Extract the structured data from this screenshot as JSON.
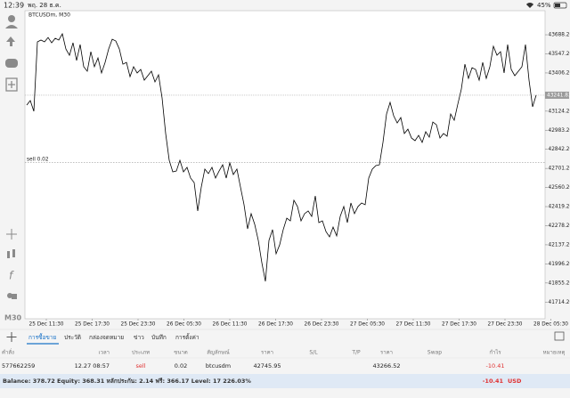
{
  "status_bar": {
    "time": "12:39",
    "date": "พฤ. 28 ธ.ค.",
    "battery": "45%"
  },
  "toolbar": {
    "timeframe": "M30"
  },
  "chart_data": {
    "type": "line",
    "title": "BTCUSDm, M30",
    "color": "#000000",
    "values": [
      43169,
      43202,
      43123,
      43636,
      43649,
      43636,
      43668,
      43629,
      43662,
      43649,
      43695,
      43583,
      43537,
      43629,
      43498,
      43616,
      43452,
      43419,
      43563,
      43452,
      43517,
      43406,
      43484,
      43583,
      43655,
      43642,
      43583,
      43471,
      43484,
      43379,
      43452,
      43406,
      43432,
      43353,
      43386,
      43419,
      43340,
      43392,
      43221,
      42959,
      42761,
      42676,
      42682,
      42761,
      42676,
      42709,
      42630,
      42597,
      42387,
      42564,
      42696,
      42663,
      42709,
      42630,
      42682,
      42728,
      42630,
      42742,
      42656,
      42696,
      42564,
      42433,
      42255,
      42367,
      42288,
      42170,
      42005,
      41867,
      42170,
      42249,
      42071,
      42137,
      42249,
      42334,
      42314,
      42466,
      42420,
      42314,
      42367,
      42387,
      42347,
      42498,
      42301,
      42314,
      42235,
      42196,
      42268,
      42203,
      42347,
      42420,
      42301,
      42446,
      42367,
      42420,
      42446,
      42433,
      42630,
      42696,
      42722,
      42728,
      42893,
      43103,
      43189,
      43090,
      43037,
      43077,
      42959,
      42991,
      42926,
      42906,
      42945,
      42893,
      42972,
      42932,
      43044,
      43024,
      42926,
      42959,
      42939,
      43103,
      43057,
      43175,
      43287,
      43471,
      43366,
      43445,
      43432,
      43353,
      43484,
      43366,
      43452,
      43603,
      43537,
      43563,
      43406,
      43616,
      43432,
      43386,
      43419,
      43452,
      43616,
      43353,
      43156,
      43242
    ],
    "ylim": [
      41591,
      43866
    ],
    "yticks": [
      {
        "value": 43688.2,
        "label": "43688.20"
      },
      {
        "value": 43547.2,
        "label": "43547.20"
      },
      {
        "value": 43406.2,
        "label": "43406.20"
      },
      {
        "value": 43124.2,
        "label": "43124.20"
      },
      {
        "value": 42983.2,
        "label": "42983.20"
      },
      {
        "value": 42842.2,
        "label": "42842.20"
      },
      {
        "value": 42701.2,
        "label": "42701.20"
      },
      {
        "value": 42560.2,
        "label": "42560.20"
      },
      {
        "value": 42419.2,
        "label": "42419.20"
      },
      {
        "value": 42278.2,
        "label": "42278.20"
      },
      {
        "value": 42137.2,
        "label": "42137.20"
      },
      {
        "value": 41996.2,
        "label": "41996.20"
      },
      {
        "value": 41855.2,
        "label": "41855.20"
      },
      {
        "value": 41714.2,
        "label": "41714.20"
      }
    ],
    "x_labels": [
      "25 Dec 11:30",
      "25 Dec 17:30",
      "25 Dec 23:30",
      "26 Dec 05:30",
      "26 Dec 11:30",
      "26 Dec 17:30",
      "26 Dec 23:30",
      "27 Dec 05:30",
      "27 Dec 11:30",
      "27 Dec 17:30",
      "27 Dec 23:30",
      "28 Dec 05:30"
    ],
    "current_price": 43241.83,
    "order_line": {
      "label": "sell 0.02",
      "value": 42745.95
    }
  },
  "terminal": {
    "tabs": [
      "การซื้อขาย",
      "ประวัติ",
      "กล่องจดหมาย",
      "ข่าว",
      "บันทึก",
      "การตั้งค่า"
    ],
    "columns": [
      "คำสั่ง",
      "เวลา",
      "ประเภท",
      "ขนาด",
      "สัญลักษณ์",
      "ราคา",
      "S/L",
      "T/P",
      "ราคา",
      "Swap",
      "กำไร",
      "หมายเหตุ"
    ],
    "rows": [
      [
        "577662259",
        "12.27 08:57",
        "sell",
        "0.02",
        "btcusdm",
        "42745.95",
        null,
        null,
        "43266.52",
        null,
        "-10.41",
        null
      ]
    ],
    "summary": "Balance: 378.72 Equity: 368.31 หลักประกัน: 2.14 ฟรี: 366.17 Level: 17 226.03%",
    "total_profit": "-10.41",
    "currency": "USD"
  }
}
